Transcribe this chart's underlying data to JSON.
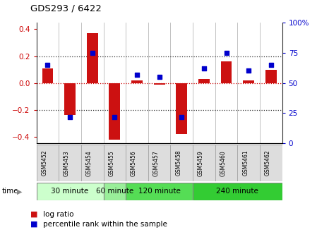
{
  "title": "GDS293 / 6422",
  "samples": [
    "GSM5452",
    "GSM5453",
    "GSM5454",
    "GSM5455",
    "GSM5456",
    "GSM5457",
    "GSM5458",
    "GSM5459",
    "GSM5460",
    "GSM5461",
    "GSM5462"
  ],
  "log_ratios": [
    0.11,
    -0.24,
    0.37,
    -0.42,
    0.02,
    -0.01,
    -0.38,
    0.03,
    0.16,
    0.02,
    0.1
  ],
  "percentile_ranks": [
    65,
    22,
    75,
    22,
    57,
    55,
    22,
    62,
    75,
    60,
    65
  ],
  "bar_color": "#cc1111",
  "dot_color": "#0000cc",
  "ylim_left": [
    -0.45,
    0.45
  ],
  "ylim_right": [
    0,
    100
  ],
  "yticks_left": [
    -0.4,
    -0.2,
    0.0,
    0.2,
    0.4
  ],
  "yticks_right": [
    0,
    25,
    50,
    75,
    100
  ],
  "left_tick_color": "#cc0000",
  "right_tick_color": "#0000cc",
  "hline_values": [
    -0.2,
    0.0,
    0.2
  ],
  "hline_zero_color": "#cc0000",
  "hline_other_color": "#333333",
  "bg_color": "#ffffff",
  "plot_bg": "#ffffff",
  "legend_logratio": "log ratio",
  "legend_percentile": "percentile rank within the sample",
  "time_label": "time",
  "group_definitions": [
    {
      "label": "30 minute",
      "start": 0,
      "end": 3,
      "color": "#ccffcc"
    },
    {
      "label": "60 minute",
      "start": 3,
      "end": 4,
      "color": "#99ee99"
    },
    {
      "label": "120 minute",
      "start": 4,
      "end": 7,
      "color": "#55dd55"
    },
    {
      "label": "240 minute",
      "start": 7,
      "end": 11,
      "color": "#33cc33"
    }
  ],
  "sample_label_bg": "#dddddd",
  "sep_color": "#aaaaaa",
  "bar_width": 0.5
}
